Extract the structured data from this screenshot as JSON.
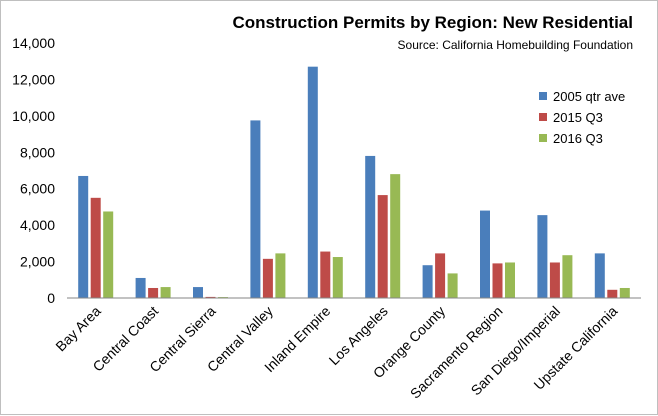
{
  "chart_data": {
    "type": "bar",
    "title": "Construction  Permits by Region:  New Residential",
    "subtitle": "Source:  California  Homebuilding Foundation",
    "xlabel": "",
    "ylabel": "",
    "categories": [
      "Bay Area",
      "Central Coast",
      "Central Sierra",
      "Central Valley",
      "Inland Empire",
      "Los Angeles",
      "Orange County",
      "Sacramento Region",
      "San Diego/Imperial",
      "Upstate California"
    ],
    "series": [
      {
        "name": "2005 qtr ave",
        "color": "#4a7ebb",
        "values": [
          6700,
          1100,
          600,
          9750,
          12700,
          7800,
          1800,
          4800,
          4550,
          2450
        ]
      },
      {
        "name": "2015 Q3",
        "color": "#be4b48",
        "values": [
          5500,
          550,
          60,
          2150,
          2550,
          5650,
          2450,
          1900,
          1950,
          450
        ]
      },
      {
        "name": "2016 Q3",
        "color": "#98b954",
        "values": [
          4750,
          600,
          50,
          2450,
          2250,
          6800,
          1350,
          1950,
          2350,
          550
        ]
      }
    ],
    "ylim": [
      0,
      14000
    ],
    "yticks": [
      0,
      2000,
      4000,
      6000,
      8000,
      10000,
      12000,
      14000
    ],
    "ytick_labels": [
      "0",
      "2,000",
      "4,000",
      "6,000",
      "8,000",
      "10,000",
      "12,000",
      "14,000"
    ],
    "grid": false,
    "legend_position": "right"
  }
}
